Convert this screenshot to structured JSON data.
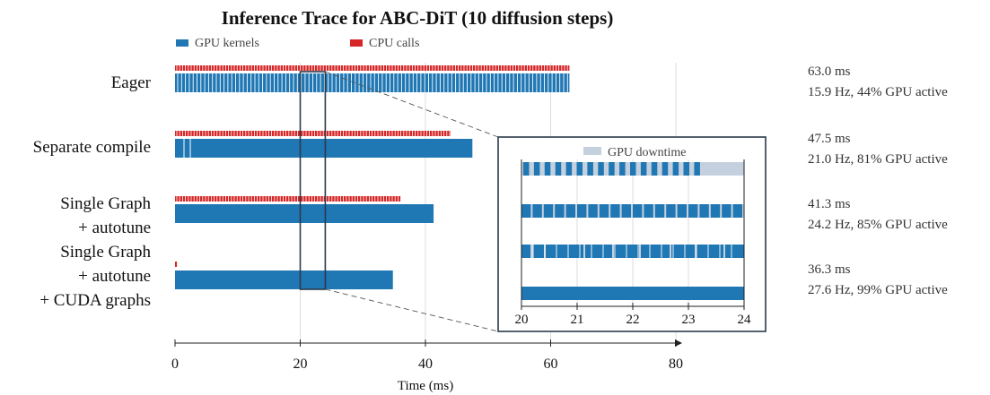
{
  "chart_data": {
    "type": "bar",
    "title": "Inference Trace for ABC-DiT (10 diffusion steps)",
    "xlabel": "Time (ms)",
    "ylabel": "",
    "xlim": [
      0,
      80
    ],
    "xticks": [
      0,
      20,
      40,
      60,
      80
    ],
    "grid": true,
    "legend_position": "top-left",
    "legend": [
      {
        "name": "GPU kernels",
        "color": "#1f77b4"
      },
      {
        "name": "CPU calls",
        "color": "#d62728"
      }
    ],
    "rows": [
      {
        "label_lines": [
          "Eager"
        ],
        "gpu_end_ms": 63.0,
        "cpu_end_ms": 63.0,
        "total_ms": 63.0,
        "total_text": "63.0 ms",
        "stats_text": "15.9 Hz, 44% GPU active",
        "gpu_active_pct": 44
      },
      {
        "label_lines": [
          "Separate compile"
        ],
        "gpu_end_ms": 47.5,
        "cpu_end_ms": 44.0,
        "total_ms": 47.5,
        "total_text": "47.5 ms",
        "stats_text": "21.0 Hz, 81% GPU active",
        "gpu_active_pct": 81
      },
      {
        "label_lines": [
          "Single Graph",
          "+ autotune"
        ],
        "gpu_end_ms": 41.3,
        "cpu_end_ms": 36.0,
        "total_ms": 41.3,
        "total_text": "41.3 ms",
        "stats_text": "24.2 Hz, 85% GPU active",
        "gpu_active_pct": 85
      },
      {
        "label_lines": [
          "Single Graph",
          "+ autotune",
          "+ CUDA graphs"
        ],
        "gpu_end_ms": 34.8,
        "cpu_end_ms": 0.3,
        "total_ms": 36.3,
        "total_text": "36.3 ms",
        "stats_text": "27.6 Hz, 99% GPU active",
        "gpu_active_pct": 99
      }
    ],
    "zoom_inset": {
      "range_ms": [
        20,
        24
      ],
      "xticks": [
        20,
        21,
        22,
        23,
        24
      ],
      "legend": [
        {
          "name": "GPU downtime",
          "color": "#c5d0de"
        }
      ]
    }
  }
}
